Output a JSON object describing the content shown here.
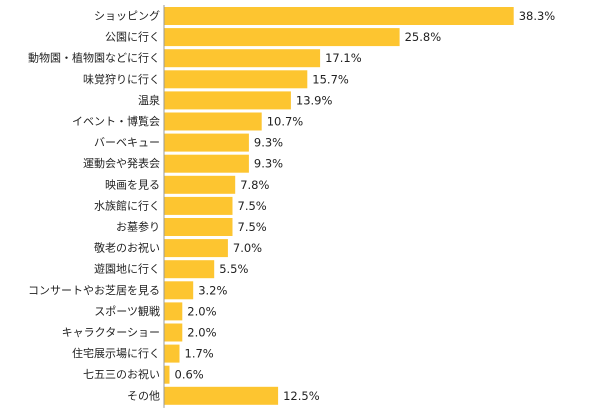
{
  "chart_data": {
    "type": "bar",
    "orientation": "horizontal",
    "title": "",
    "xlabel": "",
    "ylabel": "",
    "value_unit": "%",
    "xlim": [
      0,
      40
    ],
    "grid": false,
    "legend": "none",
    "bar_color": "#FDC530",
    "axis_color": "#999999",
    "categories": [
      "ショッピング",
      "公園に行く",
      "動物園・植物園などに行く",
      "味覚狩りに行く",
      "温泉",
      "イベント・博覧会",
      "バーベキュー",
      "運動会や発表会",
      "映画を見る",
      "水族館に行く",
      "お墓参り",
      "敬老のお祝い",
      "遊園地に行く",
      "コンサートやお芝居を見る",
      "スポーツ観戦",
      "キャラクターショー",
      "住宅展示場に行く",
      "七五三のお祝い",
      "その他"
    ],
    "values": [
      38.3,
      25.8,
      17.1,
      15.7,
      13.9,
      10.7,
      9.3,
      9.3,
      7.8,
      7.5,
      7.5,
      7.0,
      5.5,
      3.2,
      2.0,
      2.0,
      1.7,
      0.6,
      12.5
    ],
    "value_labels": [
      "38.3%",
      "25.8%",
      "17.1%",
      "15.7%",
      "13.9%",
      "10.7%",
      "9.3%",
      "9.3%",
      "7.8%",
      "7.5%",
      "7.5%",
      "7.0%",
      "5.5%",
      "3.2%",
      "2.0%",
      "2.0%",
      "1.7%",
      "0.6%",
      "12.5%"
    ]
  }
}
